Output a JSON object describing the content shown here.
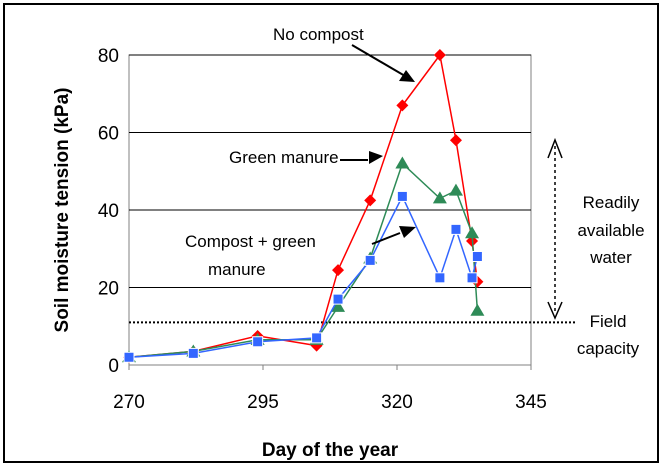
{
  "chart_data": {
    "type": "line",
    "xlabel": "Day of the year",
    "ylabel": "Soil moisture tension (kPa)",
    "xlim": [
      270,
      345
    ],
    "ylim": [
      0,
      80
    ],
    "x_ticks": [
      270,
      295,
      320,
      345
    ],
    "y_ticks": [
      0,
      20,
      40,
      60,
      80
    ],
    "grid": "horizontal",
    "series": [
      {
        "name": "No compost",
        "color": "#ff0000",
        "marker": "diamond",
        "x": [
          270,
          282,
          294,
          305,
          309,
          315,
          321,
          328,
          331,
          334,
          335
        ],
        "y": [
          2,
          3.5,
          7.5,
          5,
          24.5,
          42.5,
          67,
          80,
          58,
          32,
          21.5
        ]
      },
      {
        "name": "Green manure",
        "color": "#2e8b57",
        "marker": "triangle",
        "x": [
          270,
          282,
          294,
          305,
          309,
          315,
          321,
          328,
          331,
          334,
          335
        ],
        "y": [
          2,
          3.5,
          6.5,
          6.5,
          15,
          27.5,
          52,
          43,
          45,
          34,
          14
        ]
      },
      {
        "name": "Compost + green manure",
        "color": "#3366ff",
        "marker": "square",
        "x": [
          270,
          282,
          294,
          305,
          309,
          315,
          321,
          328,
          331,
          334,
          335
        ],
        "y": [
          2,
          3,
          6,
          7,
          17,
          27,
          43.5,
          22.5,
          35,
          22.5,
          28
        ]
      }
    ],
    "annotations": {
      "no_compost": "No compost",
      "green_manure": "Green manure",
      "compost_line1": "Compost + green",
      "compost_line2": "manure",
      "readily_line1": "Readily",
      "readily_line2": "available",
      "readily_line3": "water",
      "field_line1": "Field",
      "field_line2": "capacity"
    },
    "field_capacity": 11
  }
}
